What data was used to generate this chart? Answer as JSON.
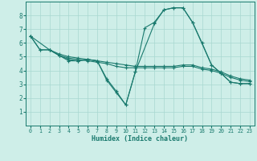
{
  "bg_color": "#ceeee8",
  "grid_color": "#a8d8d0",
  "line_color": "#1a7a6e",
  "xlabel": "Humidex (Indice chaleur)",
  "xlim": [
    -0.5,
    23.5
  ],
  "ylim": [
    0,
    9
  ],
  "xticks": [
    0,
    1,
    2,
    3,
    4,
    5,
    6,
    7,
    8,
    9,
    10,
    11,
    12,
    13,
    14,
    15,
    16,
    17,
    18,
    19,
    20,
    21,
    22,
    23
  ],
  "yticks": [
    1,
    2,
    3,
    4,
    5,
    6,
    7,
    8
  ],
  "line1_x": [
    0,
    1,
    2,
    3,
    4,
    5,
    6,
    7,
    8,
    9,
    10,
    11,
    12,
    13,
    14,
    15,
    16,
    17,
    18,
    19,
    20,
    21,
    22,
    23
  ],
  "line1_y": [
    6.5,
    5.5,
    5.5,
    5.2,
    5.0,
    4.9,
    4.8,
    4.7,
    4.6,
    4.5,
    4.4,
    4.3,
    4.3,
    4.3,
    4.3,
    4.3,
    4.4,
    4.4,
    4.2,
    4.1,
    3.9,
    3.6,
    3.4,
    3.3
  ],
  "line2_x": [
    0,
    1,
    2,
    3,
    4,
    5,
    6,
    7,
    8,
    9,
    10,
    11,
    12,
    13,
    14,
    15,
    16,
    17,
    18,
    19,
    20,
    21,
    22,
    23
  ],
  "line2_y": [
    6.5,
    5.5,
    5.5,
    5.1,
    4.9,
    4.8,
    4.7,
    4.6,
    4.5,
    4.3,
    4.2,
    4.2,
    4.2,
    4.2,
    4.2,
    4.2,
    4.3,
    4.3,
    4.1,
    4.0,
    3.8,
    3.5,
    3.3,
    3.2
  ],
  "line3_x": [
    0,
    2,
    3,
    4,
    5,
    6,
    7,
    8,
    9,
    10,
    11,
    13,
    14,
    15,
    16,
    17,
    18,
    19,
    20,
    21,
    22,
    23
  ],
  "line3_y": [
    6.5,
    5.5,
    5.1,
    4.8,
    4.7,
    4.8,
    4.7,
    3.4,
    2.5,
    1.5,
    3.9,
    7.4,
    8.4,
    8.55,
    8.55,
    7.5,
    6.0,
    4.4,
    3.8,
    3.15,
    3.05,
    3.05
  ],
  "line4_x": [
    2,
    3,
    4,
    5,
    6,
    7,
    8,
    9,
    10,
    11,
    12,
    13,
    14,
    15,
    16,
    17,
    19,
    20,
    21,
    22,
    23
  ],
  "line4_y": [
    5.5,
    5.1,
    4.7,
    4.7,
    4.8,
    4.7,
    3.3,
    2.4,
    1.5,
    3.9,
    7.1,
    7.5,
    8.4,
    8.55,
    8.55,
    7.5,
    4.4,
    3.8,
    3.15,
    3.05,
    3.05
  ]
}
